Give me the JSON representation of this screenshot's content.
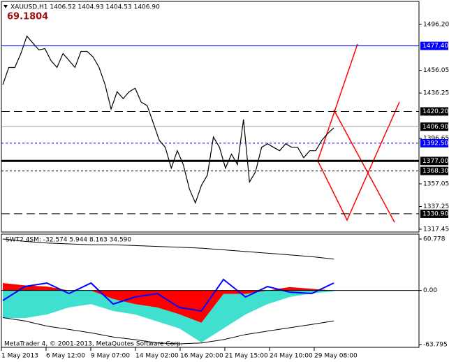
{
  "header": {
    "symbol_info": "XAUUSD,H1  1406.52 1404.93 1404.53 1406.90",
    "value": "69.1804"
  },
  "footer": "MetaTrader 4, © 2001-2013, MetaQuotes Software Corp.",
  "time_axis": [
    "1 May 2013",
    "6 May 12:00",
    "9 May 07:00",
    "14 May 02:00",
    "16 May 20:00",
    "21 May 15:00",
    "24 May 10:00",
    "29 May 08:00"
  ],
  "chart_data": [
    {
      "type": "line",
      "color": "#000000",
      "values": [
        1443.5,
        1458.6,
        1458.6,
        1470.7,
        1485.9,
        1479.8,
        1473.8,
        1475.0,
        1464.7,
        1458.6,
        1470.7,
        1464.7,
        1458.6,
        1472.6,
        1472.6,
        1467.7,
        1458.6,
        1443.5,
        1422.3,
        1437.4,
        1431.4,
        1437.4,
        1440.4,
        1428.3,
        1425.3,
        1410.1,
        1395.0,
        1388.9,
        1370.7,
        1386.0,
        1373.8,
        1352.6,
        1340.4,
        1355.6,
        1364.7,
        1398.0,
        1388.9,
        1370.7,
        1382.9,
        1373.8,
        1413.2,
        1358.6,
        1367.7,
        1388.9,
        1392.0,
        1388.9,
        1385.9,
        1392.0,
        1388.9,
        1388.9,
        1379.8,
        1385.9,
        1385.9,
        1395.0,
        1401.0,
        1405.9
      ],
      "ylim": [
        1315.0,
        1516.2
      ],
      "yticks": [
        {
          "value": 1496.2,
          "label": "1496.20"
        },
        1456.05,
        1436.25,
        1396.65,
        1357.05,
        1337.25,
        1317.45
      ],
      "levels": [
        {
          "value": 1477.4,
          "label": "1477.40",
          "color": "#0000ff",
          "style": "solid"
        },
        {
          "value": 1420.2,
          "label": "1420.20",
          "color": "#000000",
          "style": "dashed"
        },
        {
          "value": 1406.9,
          "label": "1406.90",
          "color": "#a0a0a0",
          "style": "solid"
        },
        {
          "value": 1392.5,
          "label": "1392.50",
          "color": "#0000ff",
          "style": "dotted"
        },
        {
          "value": 1377.0,
          "label": "1377.00",
          "color": "#000000",
          "style": "thick"
        },
        {
          "value": 1368.3,
          "label": "1368.30",
          "color": "#000000",
          "style": "dotted"
        },
        {
          "value": 1330.9,
          "label": "1330.90",
          "color": "#000000",
          "style": "dashed"
        }
      ]
    },
    {
      "type": "area",
      "title": "SWT2 4SM: -32.574 5.944 8.163 34.590",
      "ylim": [
        -67.1,
        66.55
      ],
      "yticks": [
        60.778,
        {
          "value": 0,
          "label": "0.00"
        },
        -63.795
      ],
      "series": [
        {
          "kind": "area",
          "color": "#40e0d0",
          "values": [
            -32.5,
            -32.5,
            -28.3,
            -20,
            -16,
            -24.2,
            -28.3,
            -36.6,
            -44.8,
            -61.3,
            -44.8,
            -28.3,
            -16,
            -7.7,
            -3.6,
            -1
          ]
        },
        {
          "kind": "area",
          "color": "#ff0000",
          "values": [
            8.8,
            6,
            4.7,
            0,
            0,
            -10,
            -16,
            -20,
            -28,
            -38,
            -4,
            -4,
            0,
            4,
            2,
            0
          ]
        },
        {
          "kind": "line",
          "color": "#000000",
          "values": [
            60.8,
            58,
            56,
            55,
            54,
            54,
            53,
            52,
            51,
            50,
            48,
            46,
            44,
            42,
            40,
            37
          ]
        },
        {
          "kind": "line",
          "color": "#000000",
          "values": [
            -32,
            -36,
            -42,
            -46,
            -50,
            -55,
            -58,
            -62,
            -63,
            -62,
            -58,
            -52,
            -48,
            -44,
            -40,
            -36
          ]
        },
        {
          "kind": "line",
          "color": "#0000ff",
          "values": [
            -11.8,
            4.7,
            8.8,
            -3.6,
            8.8,
            -16,
            -7.7,
            -3.6,
            -20,
            -24.2,
            13,
            -7.7,
            4.7,
            -1.9,
            -3.6,
            8.8
          ]
        }
      ]
    }
  ]
}
